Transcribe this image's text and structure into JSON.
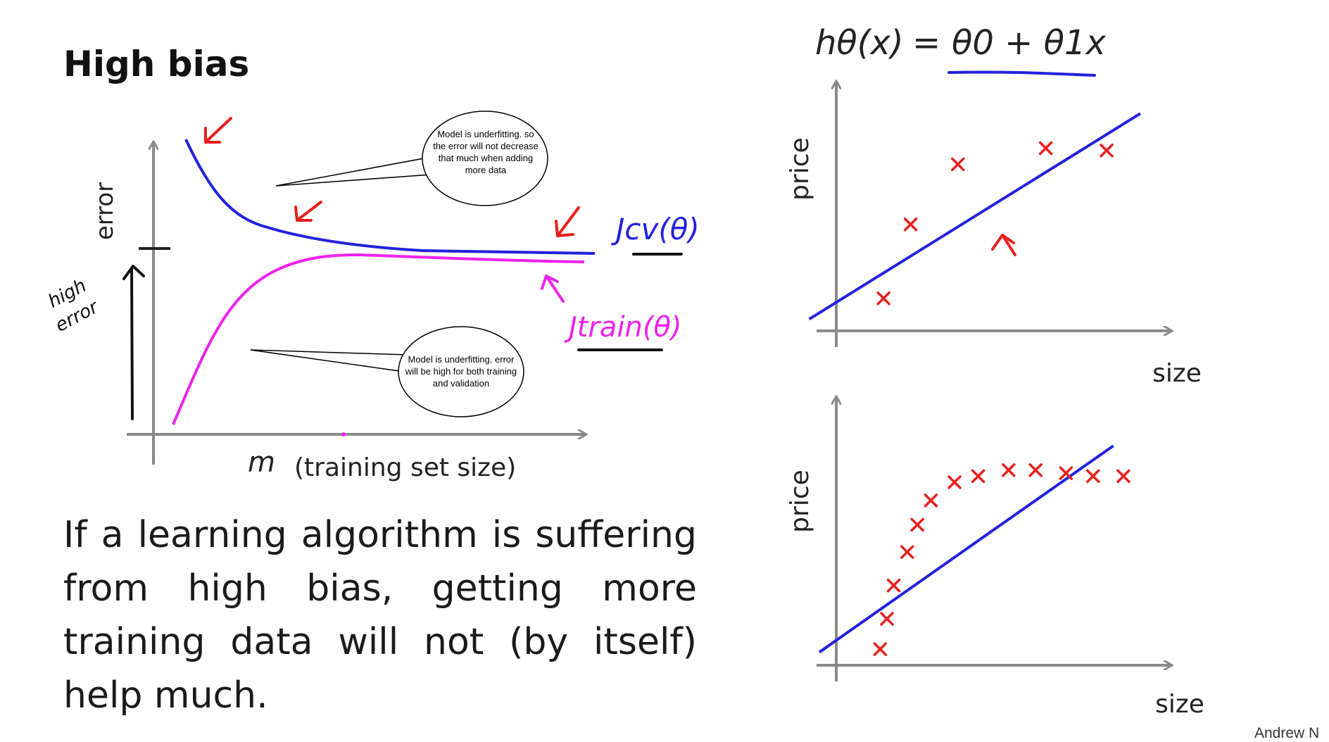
{
  "slide": {
    "title": "High bias",
    "body": "If a learning algorithm is suffering from high bias, getting more training data will not (by itself) help much.",
    "author": "Andrew N"
  },
  "learning_curve": {
    "ylabel": "error",
    "xlabel_var": "m",
    "xlabel": "(training set size)",
    "cv_label": "Jcv(θ)",
    "train_label": "Jtrain(θ)",
    "side_note": [
      "high",
      "error"
    ],
    "colors": {
      "cv": "#2222dd",
      "train": "#ee22ee",
      "annotation": "#e8201e",
      "axis": "#8a8a8a"
    }
  },
  "callouts": {
    "cv": "Model is underfitting. so the error will not decrease that much when adding more data",
    "train": "Model is underfitting. error will be high for both training and validation"
  },
  "hypothesis": {
    "lhs": "hθ(x)",
    "equals": "=",
    "rhs": "θ0 + θ1x"
  },
  "chart_data": [
    {
      "type": "scatter",
      "title": "",
      "xlabel": "size",
      "ylabel": "price",
      "points": [
        [
          1.4,
          1.5
        ],
        [
          2.2,
          4.7
        ],
        [
          3.6,
          7.3
        ],
        [
          6.2,
          8.0
        ],
        [
          8.0,
          7.9
        ]
      ],
      "fit_line": [
        [
          -0.8,
          0.6
        ],
        [
          9.0,
          9.5
        ]
      ],
      "point_color": "#e8201e",
      "line_color": "#2222dd",
      "xlim": [
        -1,
        10
      ],
      "ylim": [
        -1,
        11
      ]
    },
    {
      "type": "scatter",
      "title": "",
      "xlabel": "size",
      "ylabel": "price",
      "points": [
        [
          1.3,
          0.6
        ],
        [
          1.5,
          1.6
        ],
        [
          1.7,
          2.7
        ],
        [
          2.1,
          3.8
        ],
        [
          2.4,
          4.7
        ],
        [
          2.8,
          5.5
        ],
        [
          3.5,
          6.1
        ],
        [
          4.2,
          6.3
        ],
        [
          5.1,
          6.5
        ],
        [
          5.9,
          6.5
        ],
        [
          6.8,
          6.4
        ],
        [
          7.6,
          6.3
        ],
        [
          8.5,
          6.3
        ]
      ],
      "fit_line": [
        [
          -0.5,
          0.5
        ],
        [
          8.2,
          7.3
        ]
      ],
      "point_color": "#e8201e",
      "line_color": "#2222dd",
      "xlim": [
        -1,
        10
      ],
      "ylim": [
        -1,
        9
      ]
    }
  ]
}
